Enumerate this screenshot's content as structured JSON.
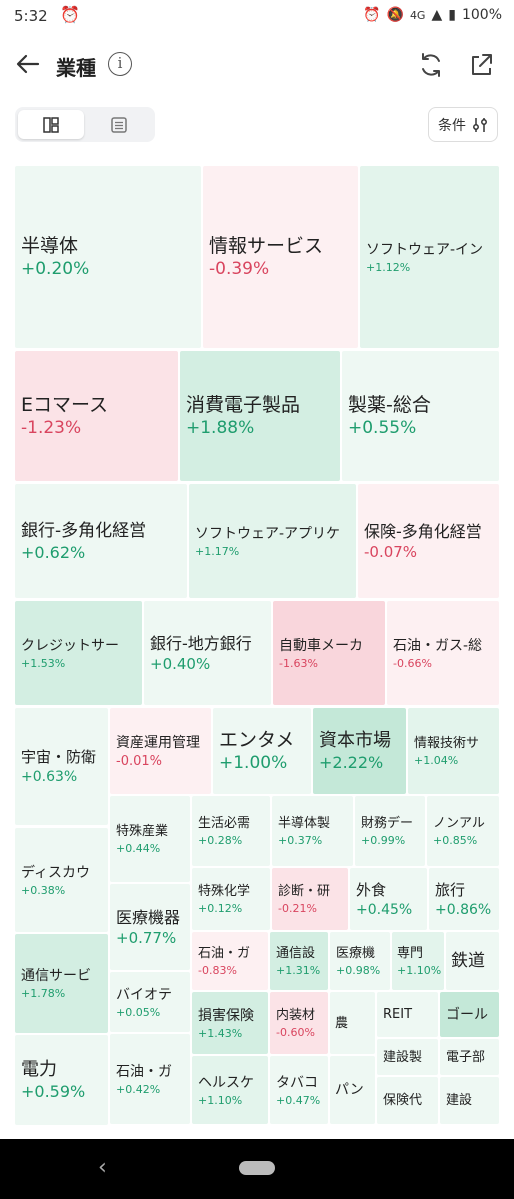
{
  "status": {
    "time": "5:32",
    "network": "4G",
    "battery": "100%"
  },
  "header": {
    "title": "業種"
  },
  "toolbar": {
    "condition_label": "条件"
  },
  "tiles": [
    {
      "name": "半導体",
      "change": "+0.20%"
    },
    {
      "name": "情報サービス",
      "change": "-0.39%"
    },
    {
      "name": "ソフトウェア-イン",
      "change": "+1.12%"
    },
    {
      "name": "Eコマース",
      "change": "-1.23%"
    },
    {
      "name": "消費電子製品",
      "change": "+1.88%"
    },
    {
      "name": "製薬-総合",
      "change": "+0.55%"
    },
    {
      "name": "銀行-多角化経営",
      "change": "+0.62%"
    },
    {
      "name": "ソフトウェア-アプリケ",
      "change": "+1.17%"
    },
    {
      "name": "保険-多角化経営",
      "change": "-0.07%"
    },
    {
      "name": "クレジットサー",
      "change": "+1.53%"
    },
    {
      "name": "銀行-地方銀行",
      "change": "+0.40%"
    },
    {
      "name": "自動車メーカ",
      "change": "-1.63%"
    },
    {
      "name": "石油・ガス-総",
      "change": "-0.66%"
    },
    {
      "name": "宇宙・防衛",
      "change": "+0.63%"
    },
    {
      "name": "資産運用管理",
      "change": "-0.01%"
    },
    {
      "name": "エンタメ",
      "change": "+1.00%"
    },
    {
      "name": "資本市場",
      "change": "+2.22%"
    },
    {
      "name": "情報技術サ",
      "change": "+1.04%"
    },
    {
      "name": "ディスカウ",
      "change": "+0.38%"
    },
    {
      "name": "特殊産業",
      "change": "+0.44%"
    },
    {
      "name": "生活必需",
      "change": "+0.28%"
    },
    {
      "name": "半導体製",
      "change": "+0.37%"
    },
    {
      "name": "財務デー",
      "change": "+0.99%"
    },
    {
      "name": "ノンアル",
      "change": "+0.85%"
    },
    {
      "name": "医療機器",
      "change": "+0.77%"
    },
    {
      "name": "特殊化学",
      "change": "+0.12%"
    },
    {
      "name": "診断・研",
      "change": "-0.21%"
    },
    {
      "name": "外食",
      "change": "+0.45%"
    },
    {
      "name": "旅行",
      "change": "+0.86%"
    },
    {
      "name": "通信サービ",
      "change": "+1.78%"
    },
    {
      "name": "石油・ガ",
      "change": "-0.83%"
    },
    {
      "name": "通信設",
      "change": "+1.31%"
    },
    {
      "name": "医療機",
      "change": "+0.98%"
    },
    {
      "name": "専門",
      "change": "+1.10%"
    },
    {
      "name": "鉄道",
      "change": ""
    },
    {
      "name": "バイオテ",
      "change": "+0.05%"
    },
    {
      "name": "損害保険",
      "change": "+1.43%"
    },
    {
      "name": "内装材",
      "change": "-0.60%"
    },
    {
      "name": "農",
      "change": ""
    },
    {
      "name": "REIT",
      "change": ""
    },
    {
      "name": "ゴール",
      "change": ""
    },
    {
      "name": "電力",
      "change": "+0.59%"
    },
    {
      "name": "建設製",
      "change": ""
    },
    {
      "name": "電子部",
      "change": ""
    },
    {
      "name": "石油・ガ",
      "change": "+0.42%"
    },
    {
      "name": "ヘルスケ",
      "change": "+1.10%"
    },
    {
      "name": "タバコ",
      "change": "+0.47%"
    },
    {
      "name": "パン",
      "change": ""
    },
    {
      "name": "保険代",
      "change": ""
    },
    {
      "name": "建設",
      "change": ""
    }
  ]
}
